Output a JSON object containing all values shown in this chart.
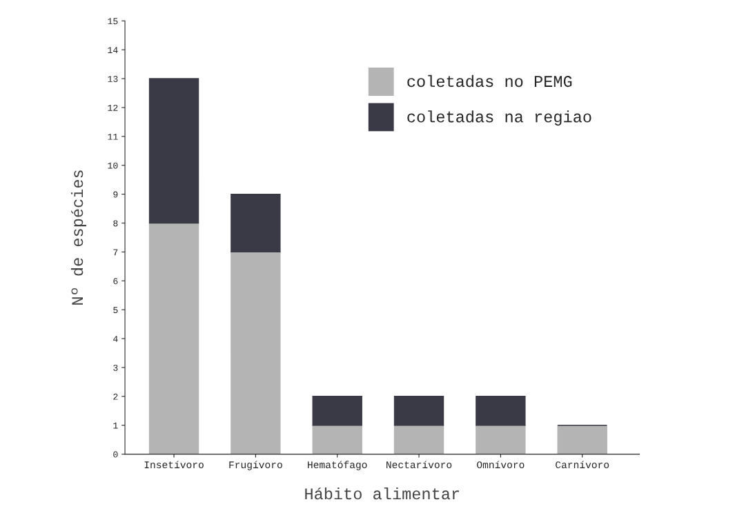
{
  "chart_data": {
    "type": "bar",
    "stacked": true,
    "xlabel": "Hábito alimentar",
    "ylabel": "Nº de espécies",
    "categories": [
      "Insetívoro",
      "Frugívoro",
      "Hematófago",
      "Nectarívoro",
      "Omnívoro",
      "Carnívoro"
    ],
    "series": [
      {
        "name": "coletadas no PEMG",
        "color": "#b4b4b4",
        "values": [
          8,
          7,
          1,
          1,
          1,
          1
        ]
      },
      {
        "name": "coletadas na regiao",
        "color": "#3a3a46",
        "values": [
          5,
          2,
          1,
          1,
          1,
          0
        ]
      }
    ],
    "ylim": [
      0,
      15
    ],
    "yticks": [
      0,
      1,
      2,
      3,
      4,
      5,
      6,
      7,
      8,
      9,
      10,
      11,
      12,
      13,
      14,
      15
    ],
    "grid": false,
    "legend": "top right"
  }
}
